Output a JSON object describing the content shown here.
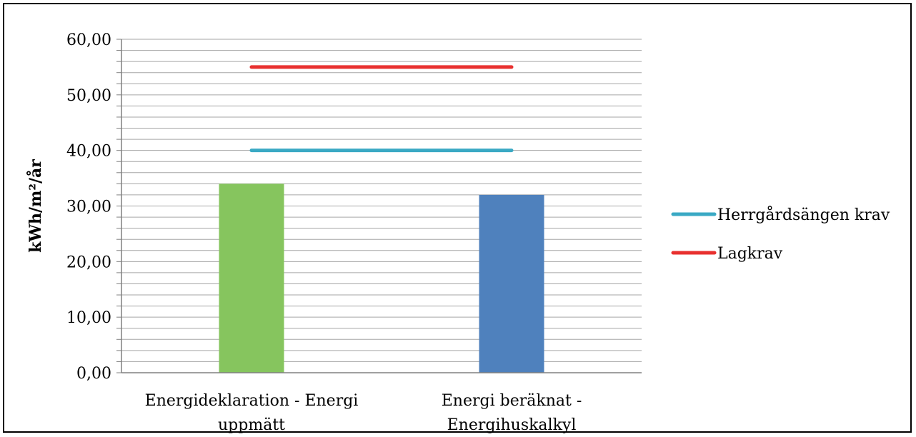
{
  "chart_data": {
    "type": "bar",
    "categories": [
      [
        "Energideklaration - Energi",
        "uppmätt"
      ],
      [
        "Energi beräknat -",
        "Energihuskalkyl"
      ]
    ],
    "values": [
      34.0,
      32.0
    ],
    "bar_colors": [
      "#86c55e",
      "#4f81bd"
    ],
    "lines": [
      {
        "name": "Herrgårdsängen krav",
        "value": 40.0,
        "color": "#3aa9c4"
      },
      {
        "name": "Lagkrav",
        "value": 55.0,
        "color": "#e8302f"
      }
    ],
    "title": "",
    "xlabel": "",
    "ylabel": "kWh/m²/år",
    "ylim": [
      0,
      60
    ],
    "y_major_ticks": [
      "0,00",
      "10,00",
      "20,00",
      "30,00",
      "40,00",
      "50,00",
      "60,00"
    ],
    "y_major_step": 10,
    "y_minor_step": 2,
    "grid": true,
    "legend_position": "right"
  }
}
